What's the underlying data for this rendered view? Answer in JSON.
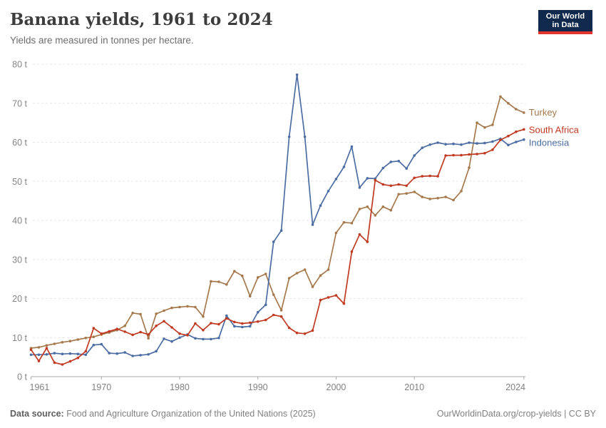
{
  "header": {
    "title": "Banana yields, 1961 to 2024",
    "subtitle": "Yields are measured in tonnes per hectare.",
    "logo": {
      "line1": "Our World",
      "line2": "in Data"
    }
  },
  "footer": {
    "source_label": "Data source:",
    "source_text": " Food and Agriculture Organization of the United Nations (2025)",
    "link_text": "OurWorldinData.org/crop-yields | CC BY"
  },
  "chart_data": {
    "type": "line",
    "title": "Banana yields, 1961 to 2024",
    "xlabel": "",
    "ylabel": "tonnes per hectare",
    "ylim": [
      0,
      80
    ],
    "yticks": [
      0,
      10,
      20,
      30,
      40,
      50,
      60,
      70,
      80
    ],
    "ytick_suffix": " t",
    "xticks": [
      1961,
      1970,
      1980,
      1990,
      2000,
      2010,
      2024
    ],
    "grid": "horizontal-dashed",
    "legend_position": "right-end-labels",
    "x": [
      1961,
      1962,
      1963,
      1964,
      1965,
      1966,
      1967,
      1968,
      1969,
      1970,
      1971,
      1972,
      1973,
      1974,
      1975,
      1976,
      1977,
      1978,
      1979,
      1980,
      1981,
      1982,
      1983,
      1984,
      1985,
      1986,
      1987,
      1988,
      1989,
      1990,
      1991,
      1992,
      1993,
      1994,
      1995,
      1996,
      1997,
      1998,
      1999,
      2000,
      2001,
      2002,
      2003,
      2004,
      2005,
      2006,
      2007,
      2008,
      2009,
      2010,
      2011,
      2012,
      2013,
      2014,
      2015,
      2016,
      2017,
      2018,
      2019,
      2020,
      2021,
      2022,
      2023,
      2024
    ],
    "series": [
      {
        "name": "Turkey",
        "color": "#A5794B",
        "values": [
          7.3,
          7.5,
          8.0,
          8.4,
          8.8,
          9.1,
          9.5,
          9.9,
          10.2,
          10.8,
          11.3,
          11.9,
          13.0,
          16.3,
          16.0,
          9.8,
          16.1,
          16.9,
          17.6,
          17.8,
          18.0,
          17.8,
          15.4,
          24.4,
          24.3,
          23.6,
          27.0,
          25.8,
          20.6,
          25.4,
          26.3,
          21.0,
          17.0,
          25.2,
          26.5,
          27.4,
          23.0,
          25.9,
          27.4,
          36.8,
          39.5,
          39.3,
          42.9,
          43.5,
          41.3,
          43.5,
          42.6,
          46.7,
          46.9,
          47.3,
          46.0,
          45.5,
          45.7,
          46.0,
          45.2,
          47.5,
          53.5,
          65.0,
          63.8,
          64.5,
          71.7,
          70.0,
          68.5,
          67.6
        ]
      },
      {
        "name": "South Africa",
        "color": "#C03A21",
        "values": [
          6.9,
          4.0,
          7.3,
          3.6,
          3.1,
          3.9,
          4.8,
          6.5,
          12.4,
          11.0,
          11.6,
          12.2,
          11.5,
          10.7,
          11.4,
          10.8,
          13.0,
          14.2,
          12.6,
          11.0,
          10.6,
          13.6,
          11.9,
          13.7,
          13.4,
          14.9,
          14.0,
          13.6,
          13.8,
          14.1,
          14.5,
          15.8,
          15.4,
          12.5,
          11.2,
          11.0,
          11.8,
          19.6,
          20.3,
          20.8,
          18.7,
          32.0,
          36.4,
          34.5,
          50.3,
          49.2,
          48.9,
          49.2,
          48.9,
          50.9,
          51.3,
          51.4,
          51.3,
          56.6,
          56.7,
          56.7,
          56.9,
          57.0,
          57.2,
          58.1,
          60.6,
          61.6,
          62.7,
          63.3
        ]
      },
      {
        "name": "Indonesia",
        "color": "#4C6DA3",
        "values": [
          5.6,
          5.6,
          5.7,
          6.0,
          5.8,
          5.9,
          5.8,
          5.6,
          8.1,
          8.3,
          6.0,
          5.9,
          6.2,
          5.3,
          5.5,
          5.7,
          6.5,
          9.7,
          9.0,
          10.0,
          10.8,
          9.8,
          9.6,
          9.6,
          9.9,
          15.6,
          12.9,
          12.7,
          12.9,
          16.5,
          18.4,
          34.5,
          37.4,
          61.4,
          77.3,
          61.4,
          38.9,
          43.8,
          47.5,
          50.6,
          53.7,
          58.9,
          48.4,
          50.8,
          50.7,
          53.4,
          55.0,
          55.2,
          53.3,
          56.6,
          58.6,
          59.4,
          59.9,
          59.5,
          59.6,
          59.4,
          59.9,
          59.7,
          59.8,
          60.2,
          60.9,
          59.3,
          60.1,
          60.7
        ]
      }
    ]
  }
}
